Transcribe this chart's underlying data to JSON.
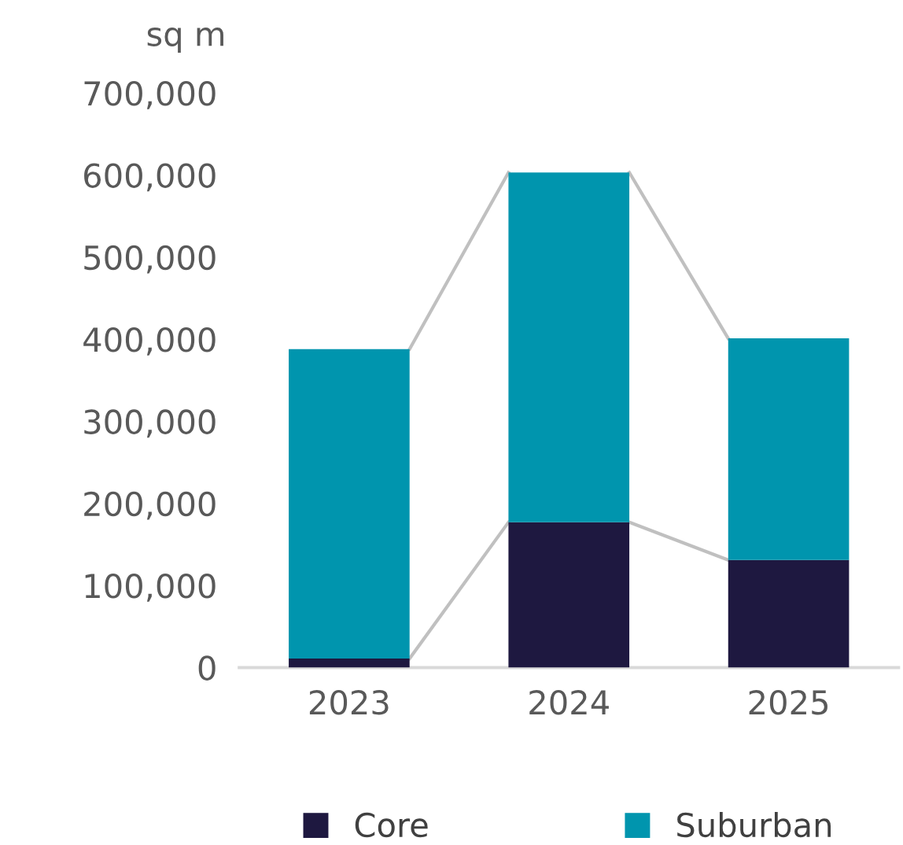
{
  "chart_data": {
    "type": "bar",
    "stacked": true,
    "ylabel": "sq m",
    "categories": [
      "2023",
      "2024",
      "2025"
    ],
    "series": [
      {
        "name": "Core",
        "color": "#1e1840",
        "values": [
          11000,
          177000,
          131000
        ]
      },
      {
        "name": "Suburban",
        "color": "#0095ae",
        "values": [
          377000,
          426000,
          270000
        ]
      }
    ],
    "ylim": [
      0,
      700000
    ],
    "yticks": [
      {
        "value": 0,
        "label": "0"
      },
      {
        "value": 100000,
        "label": "100,000"
      },
      {
        "value": 200000,
        "label": "200,000"
      },
      {
        "value": 300000,
        "label": "300,000"
      },
      {
        "value": 400000,
        "label": "400,000"
      },
      {
        "value": 500000,
        "label": "500,000"
      },
      {
        "value": 600000,
        "label": "600,000"
      },
      {
        "value": 700000,
        "label": "700,000"
      }
    ],
    "grid": false,
    "legend": "bottom"
  }
}
